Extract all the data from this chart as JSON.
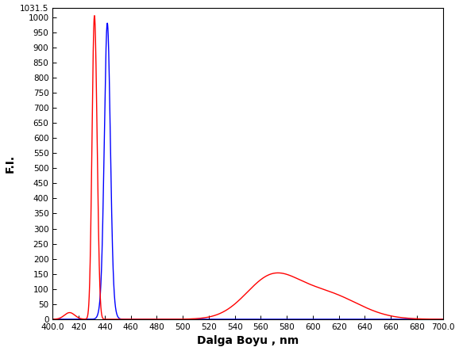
{
  "title": "",
  "xlabel": "Dalga Boyu , nm",
  "ylabel": "F.I.",
  "xlim": [
    400.0,
    700.0
  ],
  "ylim": [
    -0.3,
    1031.5
  ],
  "yticks": [
    0,
    50,
    100,
    150,
    200,
    250,
    300,
    350,
    400,
    450,
    500,
    550,
    600,
    650,
    700,
    750,
    800,
    850,
    900,
    950,
    1000
  ],
  "ytick_extra": 1031.5,
  "xticks": [
    400.0,
    420,
    440,
    460,
    480,
    500,
    520,
    540,
    560,
    580,
    600,
    620,
    640,
    660,
    680,
    700.0
  ],
  "blue_color": "#0000ff",
  "red_color": "#ff0000",
  "background_color": "#ffffff",
  "line_width": 1.0,
  "xlabel_fontsize": 10,
  "ylabel_fontsize": 10,
  "tick_fontsize": 7.5
}
